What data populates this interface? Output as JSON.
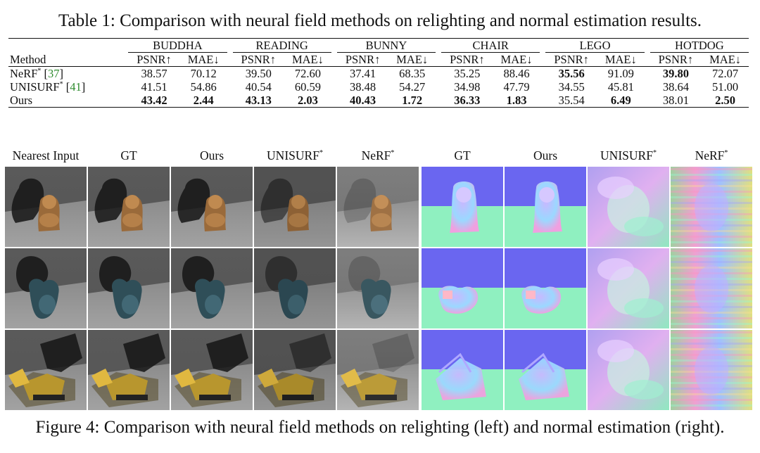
{
  "table": {
    "caption": "Table 1: Comparison with neural field methods on relighting and normal estimation results.",
    "method_header": "Method",
    "groups": [
      "BUDDHA",
      "READING",
      "BUNNY",
      "CHAIR",
      "LEGO",
      "HOTDOG"
    ],
    "metric_headers": [
      "PSNR↑",
      "MAE↓"
    ],
    "rows": [
      {
        "method": "NeRF",
        "sup": "*",
        "cite": "37",
        "values": [
          "38.57",
          "70.12",
          "39.50",
          "72.60",
          "37.41",
          "68.35",
          "35.25",
          "88.46",
          "35.56",
          "91.09",
          "39.80",
          "72.07"
        ],
        "bold": [
          false,
          false,
          false,
          false,
          false,
          false,
          false,
          false,
          true,
          false,
          true,
          false
        ]
      },
      {
        "method": "UNISURF",
        "sup": "*",
        "cite": "41",
        "values": [
          "41.51",
          "54.86",
          "40.54",
          "60.59",
          "38.48",
          "54.27",
          "34.98",
          "47.79",
          "34.55",
          "45.81",
          "38.64",
          "51.00"
        ],
        "bold": [
          false,
          false,
          false,
          false,
          false,
          false,
          false,
          false,
          false,
          false,
          false,
          false
        ]
      },
      {
        "method": "Ours",
        "sup": "",
        "cite": "",
        "values": [
          "43.42",
          "2.44",
          "43.13",
          "2.03",
          "40.43",
          "1.72",
          "36.33",
          "1.83",
          "35.54",
          "6.49",
          "38.01",
          "2.50"
        ],
        "bold": [
          true,
          true,
          true,
          true,
          true,
          true,
          true,
          true,
          false,
          true,
          false,
          true
        ]
      }
    ]
  },
  "figure": {
    "caption": "Figure 4: Comparison with neural field methods on relighting (left) and normal estimation (right).",
    "relighting_headers": [
      "Nearest Input",
      "GT",
      "Ours",
      "UNISURF*",
      "NeRF*"
    ],
    "normal_headers": [
      "GT",
      "Ours",
      "UNISURF*",
      "NeRF*"
    ],
    "rows": [
      "buddha",
      "reading",
      "lego"
    ]
  }
}
